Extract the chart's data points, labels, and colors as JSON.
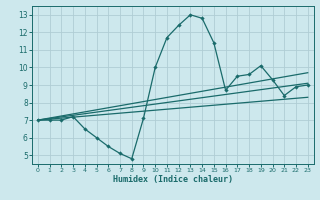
{
  "title": "",
  "xlabel": "Humidex (Indice chaleur)",
  "ylabel": "",
  "bg_color": "#cde8ed",
  "grid_color": "#b0cdd4",
  "line_color": "#1a6b6b",
  "xlim": [
    -0.5,
    23.5
  ],
  "ylim": [
    4.5,
    13.5
  ],
  "xticks": [
    0,
    1,
    2,
    3,
    4,
    5,
    6,
    7,
    8,
    9,
    10,
    11,
    12,
    13,
    14,
    15,
    16,
    17,
    18,
    19,
    20,
    21,
    22,
    23
  ],
  "yticks": [
    5,
    6,
    7,
    8,
    9,
    10,
    11,
    12,
    13
  ],
  "curve1_x": [
    0,
    1,
    2,
    3,
    4,
    5,
    6,
    7,
    8,
    9,
    10,
    11,
    12,
    13,
    14,
    15,
    16,
    17,
    18,
    19,
    20,
    21,
    22,
    23
  ],
  "curve1_y": [
    7.0,
    7.0,
    7.0,
    7.2,
    6.5,
    6.0,
    5.5,
    5.1,
    4.8,
    7.1,
    10.0,
    11.7,
    12.4,
    13.0,
    12.8,
    11.4,
    8.7,
    9.5,
    9.6,
    10.1,
    9.3,
    8.4,
    8.9,
    9.0
  ],
  "curve2_x": [
    0,
    23
  ],
  "curve2_y": [
    7.0,
    9.7
  ],
  "curve3_x": [
    0,
    23
  ],
  "curve3_y": [
    7.0,
    9.1
  ],
  "curve4_x": [
    0,
    23
  ],
  "curve4_y": [
    7.0,
    8.3
  ]
}
